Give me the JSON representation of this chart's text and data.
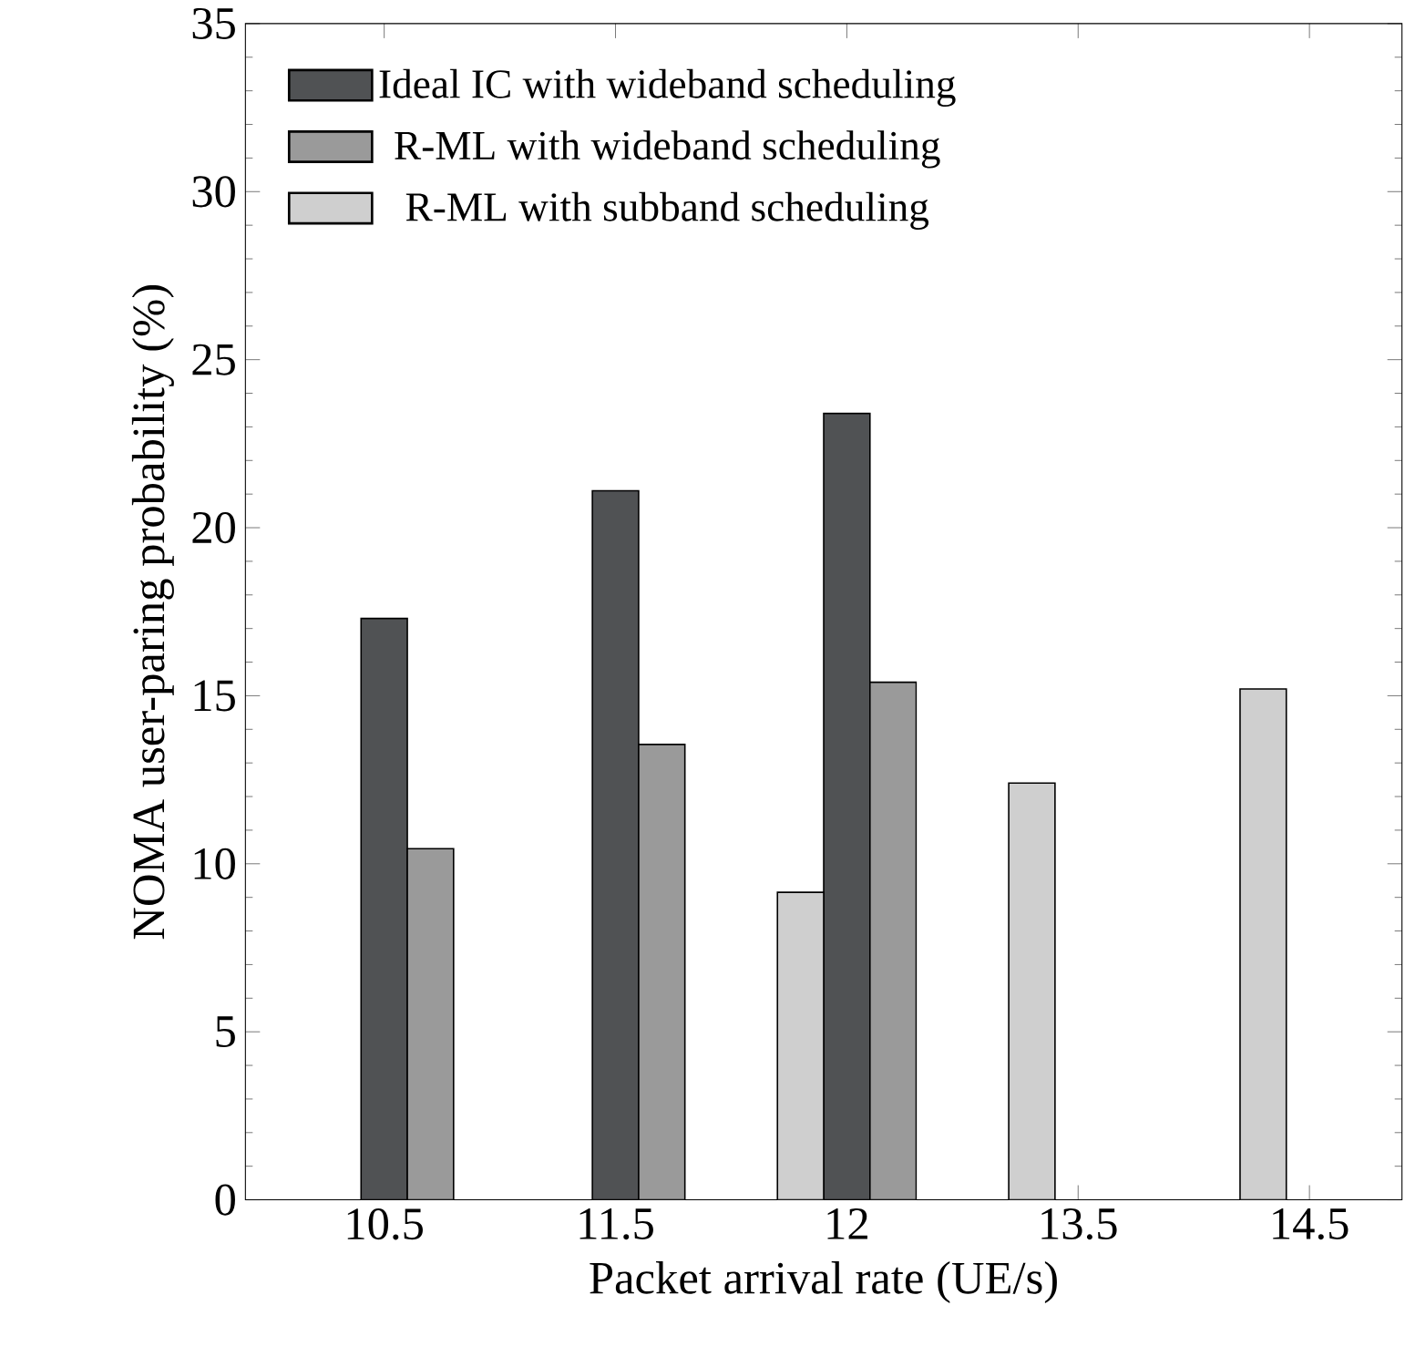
{
  "chart_data": {
    "type": "bar",
    "xlabel": "Packet arrival rate (UE/s)",
    "ylabel": "NOMA user-paring probability  (%)",
    "categories": [
      "10.5",
      "11.5",
      "12",
      "13.5",
      "14.5"
    ],
    "series": [
      {
        "name": "Ideal IC with  wideband  scheduling",
        "color": "#505254",
        "values": [
          17.3,
          21.1,
          23.4,
          null,
          null
        ]
      },
      {
        "name": "R-ML with  wideband  scheduling",
        "color": "#9a9a9a",
        "values": [
          10.45,
          13.55,
          15.4,
          null,
          null
        ]
      },
      {
        "name": "R-ML with  subband  scheduling",
        "color": "#cfcfcf",
        "values": [
          null,
          null,
          9.15,
          12.4,
          15.2
        ]
      }
    ],
    "ylim": [
      0,
      35
    ],
    "yticks": [
      0,
      5,
      10,
      15,
      20,
      25,
      30,
      35
    ],
    "legend": "top left",
    "grid": false
  }
}
